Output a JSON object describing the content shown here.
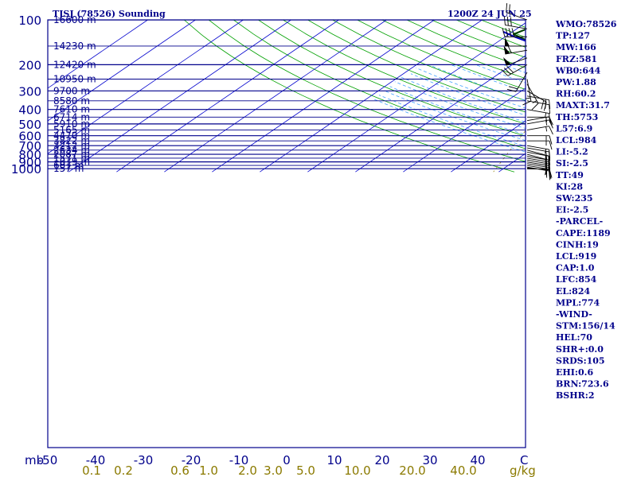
{
  "chart_data": {
    "type": "line",
    "title": "TJSJ (78526) Sounding",
    "valid_time": "1200Z 24 JUN 25",
    "pressure_levels": [
      100,
      200,
      300,
      400,
      500,
      600,
      700,
      800,
      900,
      1000
    ],
    "pressure_tick_labels": [
      "100",
      "200",
      "300",
      "400",
      "500",
      "600",
      "700",
      "800",
      "900",
      "1000"
    ],
    "pressure_unit": "mb",
    "temperature_ticks": [
      -50,
      -40,
      -30,
      -20,
      -10,
      0,
      10,
      20,
      30,
      40
    ],
    "temperature_tick_labels": [
      "-50",
      "-40",
      "-30",
      "-20",
      "-10",
      "0",
      "10",
      "20",
      "30",
      "40"
    ],
    "temperature_unit": "C",
    "mixing_ratio_labels": [
      "0.1",
      "0.2",
      "0.6",
      "1.0",
      "2.0",
      "3.0",
      "5.0",
      "10.0",
      "20.0",
      "40.0"
    ],
    "mixing_ratio_unit": "g/kg",
    "height_labels": [
      {
        "p": 100,
        "text": "16600 m"
      },
      {
        "p": 150,
        "text": "14230 m"
      },
      {
        "p": 200,
        "text": "12420 m"
      },
      {
        "p": 250,
        "text": "10950 m"
      },
      {
        "p": 300,
        "text": "9700 m"
      },
      {
        "p": 350,
        "text": "8580 m"
      },
      {
        "p": 400,
        "text": "7610 m"
      },
      {
        "p": 450,
        "text": "6714 m"
      },
      {
        "p": 500,
        "text": "5910 m"
      },
      {
        "p": 550,
        "text": "5165 m"
      },
      {
        "p": 600,
        "text": "4470 m"
      },
      {
        "p": 650,
        "text": "3822 m"
      },
      {
        "p": 700,
        "text": "3212 m"
      },
      {
        "p": 750,
        "text": "2634 m"
      },
      {
        "p": 800,
        "text": "2087 m"
      },
      {
        "p": 850,
        "text": "1571 m"
      },
      {
        "p": 900,
        "text": "1079 m"
      },
      {
        "p": 950,
        "text": "607 m"
      },
      {
        "p": 1000,
        "text": "157 m"
      }
    ],
    "series": [
      {
        "name": "Temperature",
        "color": "#b00000",
        "points": [
          [
            1011,
            27
          ],
          [
            995,
            25
          ],
          [
            975,
            24
          ],
          [
            950,
            24
          ],
          [
            925,
            23
          ],
          [
            900,
            22
          ],
          [
            875,
            21
          ],
          [
            850,
            20
          ],
          [
            825,
            20
          ],
          [
            800,
            20
          ],
          [
            775,
            19
          ],
          [
            750,
            17
          ],
          [
            725,
            16
          ],
          [
            700,
            15
          ],
          [
            675,
            13
          ],
          [
            650,
            12
          ],
          [
            625,
            10
          ],
          [
            600,
            8
          ],
          [
            575,
            7
          ],
          [
            550,
            6
          ],
          [
            525,
            5
          ],
          [
            500,
            4
          ],
          [
            475,
            3
          ],
          [
            450,
            1
          ],
          [
            400,
            -3
          ],
          [
            350,
            -9
          ],
          [
            300,
            -16
          ],
          [
            250,
            -26
          ],
          [
            200,
            -37
          ],
          [
            160,
            -48
          ],
          [
            150,
            -53
          ],
          [
            125,
            -52
          ],
          [
            100,
            -50
          ]
        ]
      },
      {
        "name": "Dewpoint",
        "color": "#004000",
        "points": [
          [
            1011,
            21
          ],
          [
            1000,
            20
          ],
          [
            975,
            19
          ],
          [
            950,
            19
          ],
          [
            925,
            19
          ],
          [
            900,
            18
          ],
          [
            875,
            17
          ],
          [
            850,
            16
          ],
          [
            825,
            14
          ],
          [
            800,
            14
          ],
          [
            775,
            14
          ],
          [
            750,
            11
          ],
          [
            725,
            10
          ],
          [
            700,
            3
          ],
          [
            690,
            6
          ],
          [
            675,
            10
          ],
          [
            660,
            5
          ],
          [
            640,
            11
          ],
          [
            620,
            3
          ],
          [
            615,
            -4
          ],
          [
            600,
            4
          ],
          [
            590,
            -4
          ],
          [
            575,
            0
          ],
          [
            560,
            1
          ],
          [
            550,
            -3
          ],
          [
            540,
            0
          ],
          [
            525,
            -4
          ],
          [
            510,
            -10
          ],
          [
            500,
            -14
          ],
          [
            450,
            -8
          ],
          [
            400,
            -7
          ],
          [
            350,
            -15
          ],
          [
            300,
            -22
          ],
          [
            250,
            -35
          ],
          [
            200,
            -52
          ],
          [
            150,
            -70
          ],
          [
            125,
            -79
          ],
          [
            100,
            -76
          ]
        ]
      },
      {
        "name": "Parcel",
        "color": "#0000c0",
        "points": [
          [
            1011,
            27
          ],
          [
            990,
            25
          ],
          [
            970,
            23.5
          ],
          [
            950,
            23
          ],
          [
            900,
            21
          ],
          [
            850,
            18.5
          ],
          [
            800,
            16
          ],
          [
            750,
            13.5
          ],
          [
            700,
            10.5
          ],
          [
            650,
            7.5
          ],
          [
            600,
            4
          ],
          [
            550,
            0
          ],
          [
            500,
            -4.5
          ],
          [
            450,
            -9.5
          ],
          [
            400,
            -15
          ],
          [
            350,
            -22
          ],
          [
            300,
            -30
          ],
          [
            250,
            -40
          ],
          [
            200,
            -52
          ],
          [
            170,
            -62
          ],
          [
            150,
            -70
          ],
          [
            130,
            -78
          ],
          [
            120,
            -82
          ]
        ]
      }
    ],
    "winds": [
      {
        "p": 1005,
        "dir": 90,
        "spd": 10
      },
      {
        "p": 990,
        "dir": 95,
        "spd": 15
      },
      {
        "p": 975,
        "dir": 100,
        "spd": 15
      },
      {
        "p": 950,
        "dir": 100,
        "spd": 20
      },
      {
        "p": 925,
        "dir": 100,
        "spd": 20
      },
      {
        "p": 900,
        "dir": 100,
        "spd": 20
      },
      {
        "p": 875,
        "dir": 100,
        "spd": 20
      },
      {
        "p": 850,
        "dir": 100,
        "spd": 20
      },
      {
        "p": 825,
        "dir": 100,
        "spd": 20
      },
      {
        "p": 800,
        "dir": 105,
        "spd": 20
      },
      {
        "p": 775,
        "dir": 100,
        "spd": 20
      },
      {
        "p": 750,
        "dir": 105,
        "spd": 20
      },
      {
        "p": 725,
        "dir": 100,
        "spd": 20
      },
      {
        "p": 700,
        "dir": 100,
        "spd": 15
      },
      {
        "p": 650,
        "dir": 90,
        "spd": 15
      },
      {
        "p": 600,
        "dir": 90,
        "spd": 15
      },
      {
        "p": 550,
        "dir": 80,
        "spd": 15
      },
      {
        "p": 500,
        "dir": 80,
        "spd": 15
      },
      {
        "p": 475,
        "dir": 80,
        "spd": 15
      },
      {
        "p": 450,
        "dir": 90,
        "spd": 15
      },
      {
        "p": 400,
        "dir": 100,
        "spd": 15
      },
      {
        "p": 350,
        "dir": 100,
        "spd": 15
      },
      {
        "p": 325,
        "dir": 100,
        "spd": 15
      },
      {
        "p": 300,
        "dir": 120,
        "spd": 20
      },
      {
        "p": 270,
        "dir": 150,
        "spd": 15
      },
      {
        "p": 250,
        "dir": 170,
        "spd": 15
      },
      {
        "p": 225,
        "dir": 210,
        "spd": 20
      },
      {
        "p": 200,
        "dir": 240,
        "spd": 30
      },
      {
        "p": 180,
        "dir": 250,
        "spd": 50
      },
      {
        "p": 160,
        "dir": 260,
        "spd": 60
      },
      {
        "p": 150,
        "dir": 270,
        "spd": 50
      },
      {
        "p": 130,
        "dir": 270,
        "spd": 40
      },
      {
        "p": 115,
        "dir": 280,
        "spd": 30
      },
      {
        "p": 100,
        "dir": 290,
        "spd": 20
      }
    ],
    "indices": [
      "WMO:78526",
      "TP:127",
      "MW:166",
      "FRZ:581",
      "WB0:644",
      "PW:1.88",
      "RH:60.2",
      "MAXT:31.7",
      "TH:5753",
      "L57:6.9",
      "LCL:984",
      "LI:-5.2",
      "SI:-2.5",
      "TT:49",
      "KI:28",
      "SW:235",
      "EI:-2.5",
      "-PARCEL-",
      "CAPE:1189",
      "CINH:19",
      "LCL:919",
      "CAP:1.0",
      "LFC:854",
      "EL:824",
      "MPL:774",
      "-WIND-",
      "STM:156/14",
      "HEL:70",
      "SHR+:0.0",
      "SRDS:105",
      "EHI:0.6",
      "BRN:723.6",
      "BSHR:2"
    ],
    "colors": {
      "isobar": "#00008b",
      "isotherm": "#0000cd",
      "dry_adiabat": "#00a000",
      "moist_adiabat": "#40a0ff",
      "mixing_ratio": "#8b7a00"
    }
  }
}
